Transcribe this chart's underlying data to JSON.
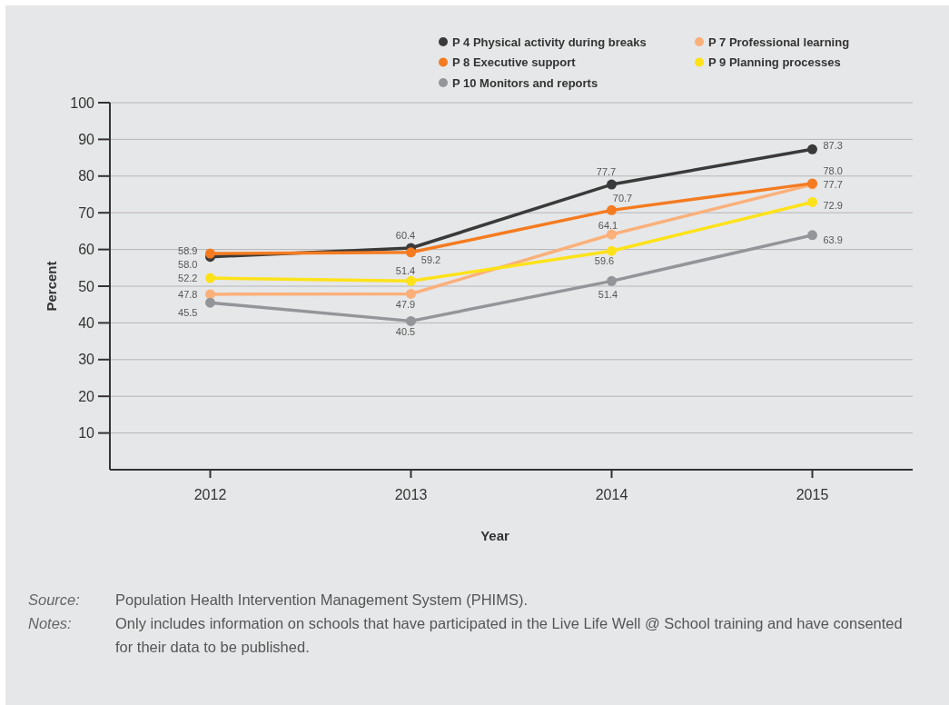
{
  "chart_data": {
    "type": "line",
    "xlabel": "Year",
    "ylabel": "Percent",
    "categories": [
      "2012",
      "2013",
      "2014",
      "2015"
    ],
    "series": [
      {
        "name": "P 4 Physical activity during breaks",
        "color": "#3a3a3a",
        "values": [
          58.0,
          60.4,
          77.7,
          87.3
        ],
        "value_labels": [
          "58.0",
          "60.4",
          "77.7",
          "87.3"
        ]
      },
      {
        "name": "P 7 Professional learning",
        "color": "#fbb07a",
        "values": [
          47.8,
          47.9,
          64.1,
          77.7
        ],
        "value_labels": [
          "47.8",
          "47.9",
          "64.1",
          "77.7"
        ]
      },
      {
        "name": "P 8 Executive support",
        "color": "#f47b20",
        "values": [
          58.9,
          59.2,
          70.7,
          78.0
        ],
        "value_labels": [
          "58.9",
          "59.2",
          "70.7",
          "78.0"
        ]
      },
      {
        "name": "P 9 Planning processes",
        "color": "#fde21a",
        "values": [
          52.2,
          51.4,
          59.6,
          72.9
        ],
        "value_labels": [
          "52.2",
          "51.4",
          "59.6",
          "72.9"
        ]
      },
      {
        "name": "P 10 Monitors and reports",
        "color": "#939598",
        "values": [
          45.5,
          40.5,
          51.4,
          63.9
        ],
        "value_labels": [
          "45.5",
          "40.5",
          "51.4",
          "63.9"
        ]
      }
    ],
    "ylim": [
      0,
      100
    ],
    "yticks": [
      10,
      20,
      30,
      40,
      50,
      60,
      70,
      80,
      90,
      100
    ],
    "grid": "y",
    "legend": "top right",
    "marker": "circle",
    "line_style": "solid",
    "annotations": [
      "Source: Population Health Intervention Management System (PHIMS).",
      "Notes: Only includes information on schools that have participated in the Live Life Well @ School training and have consented for their data to be published."
    ]
  }
}
